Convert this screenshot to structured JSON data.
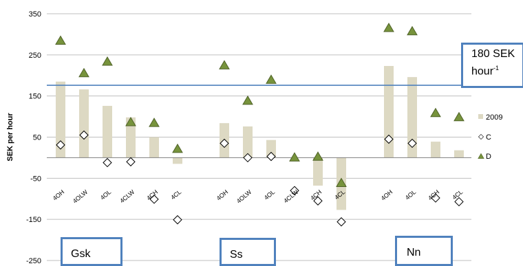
{
  "chart_data": {
    "type": "bar",
    "ylabel": "SEK per hour",
    "ylim": [
      -250,
      350
    ],
    "yticks": [
      350,
      250,
      150,
      50,
      -50,
      -150,
      -250
    ],
    "grid": true,
    "legend_placement": "right",
    "categories": [
      "4OH",
      "4OLW",
      "4OL",
      "4CLW",
      "4CH",
      "4CL",
      "4OH",
      "4OLW",
      "4OL",
      "4CLW",
      "4CH",
      "4CL",
      "4OH",
      "4OL",
      "4CH",
      "4CL"
    ],
    "series": [
      {
        "name": "2009",
        "kind": "bar",
        "color": "#ddd9c3",
        "values": [
          185,
          166,
          126,
          98,
          50,
          -15,
          84,
          76,
          43,
          0,
          -68,
          -127,
          223,
          196,
          39,
          18
        ]
      },
      {
        "name": "C",
        "kind": "diamond",
        "color": "#ffffff",
        "values": [
          31,
          55,
          -12,
          -10,
          -101,
          -151,
          35,
          0,
          3,
          -80,
          -105,
          -156,
          45,
          35,
          -98,
          -107
        ]
      },
      {
        "name": "D",
        "kind": "triangle",
        "color": "#77933c",
        "values": [
          284,
          205,
          233,
          86,
          84,
          21,
          224,
          138,
          189,
          0,
          2,
          -62,
          315,
          307,
          108,
          98
        ]
      }
    ],
    "reference_line": {
      "value": 176,
      "color": "#4f81bd"
    },
    "groups": [
      {
        "label": "Gsk",
        "start": 0,
        "end": 5
      },
      {
        "label": "Ss",
        "start": 6,
        "end": 11
      },
      {
        "label": "Nn",
        "start": 12,
        "end": 15
      }
    ],
    "annotation": {
      "text": "180 SEK hour",
      "sup": "-1"
    }
  }
}
